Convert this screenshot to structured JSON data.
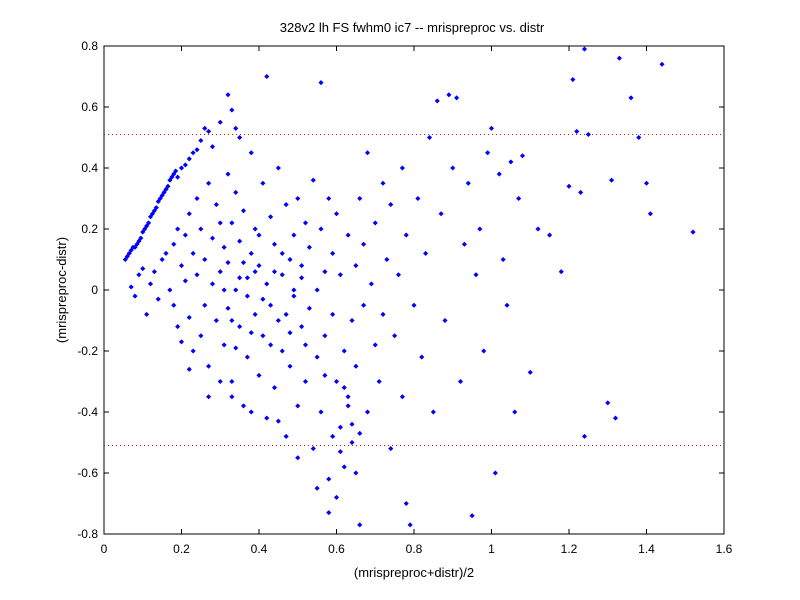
{
  "chart_data": {
    "type": "scatter",
    "title": "328v2 lh FS fwhm0 ic7 -- mrispreproc vs. distr",
    "xlabel": "(mrispreproc+distr)/2",
    "ylabel": "(mrispreproc-distr)",
    "xlim": [
      0,
      1.6
    ],
    "ylim": [
      -0.8,
      0.8
    ],
    "xticks": [
      0,
      0.2,
      0.4,
      0.6,
      0.8,
      1,
      1.2,
      1.4,
      1.6
    ],
    "xtick_labels": [
      "0",
      "0.2",
      "0.4",
      "0.6",
      "0.8",
      "1",
      "1.2",
      "1.4",
      "1.6"
    ],
    "yticks": [
      -0.8,
      -0.6,
      -0.4,
      -0.2,
      0,
      0.2,
      0.4,
      0.6,
      0.8
    ],
    "ytick_labels": [
      "-0.8",
      "-0.6",
      "-0.4",
      "-0.2",
      "0",
      "0.2",
      "0.4",
      "0.6",
      "0.8"
    ],
    "grid": false,
    "marker_color": "#0000ff",
    "reference_line_color": "#ff0000",
    "reference_lines_y": [
      0.51,
      -0.51
    ],
    "points": [
      [
        0.055,
        0.1
      ],
      [
        0.06,
        0.11
      ],
      [
        0.065,
        0.12
      ],
      [
        0.07,
        0.13
      ],
      [
        0.075,
        0.14
      ],
      [
        0.08,
        0.14
      ],
      [
        0.085,
        0.15
      ],
      [
        0.09,
        0.16
      ],
      [
        0.095,
        0.17
      ],
      [
        0.1,
        0.19
      ],
      [
        0.105,
        0.2
      ],
      [
        0.11,
        0.21
      ],
      [
        0.115,
        0.22
      ],
      [
        0.12,
        0.24
      ],
      [
        0.125,
        0.25
      ],
      [
        0.13,
        0.26
      ],
      [
        0.135,
        0.27
      ],
      [
        0.14,
        0.29
      ],
      [
        0.145,
        0.3
      ],
      [
        0.15,
        0.31
      ],
      [
        0.155,
        0.32
      ],
      [
        0.16,
        0.33
      ],
      [
        0.165,
        0.34
      ],
      [
        0.17,
        0.36
      ],
      [
        0.175,
        0.37
      ],
      [
        0.18,
        0.38
      ],
      [
        0.185,
        0.39
      ],
      [
        0.19,
        0.37
      ],
      [
        0.2,
        0.4
      ],
      [
        0.21,
        0.41
      ],
      [
        0.22,
        0.43
      ],
      [
        0.23,
        0.45
      ],
      [
        0.24,
        0.46
      ],
      [
        0.25,
        0.49
      ],
      [
        0.26,
        0.53
      ],
      [
        0.27,
        0.52
      ],
      [
        0.28,
        0.47
      ],
      [
        0.3,
        0.55
      ],
      [
        0.32,
        0.64
      ],
      [
        0.33,
        0.59
      ],
      [
        0.34,
        0.53
      ],
      [
        0.35,
        0.5
      ],
      [
        0.42,
        0.7
      ],
      [
        0.56,
        0.68
      ],
      [
        0.07,
        0.01
      ],
      [
        0.08,
        -0.02
      ],
      [
        0.09,
        0.05
      ],
      [
        0.1,
        0.07
      ],
      [
        0.11,
        -0.08
      ],
      [
        0.12,
        0.02
      ],
      [
        0.13,
        0.06
      ],
      [
        0.14,
        -0.03
      ],
      [
        0.15,
        0.1
      ],
      [
        0.16,
        0.12
      ],
      [
        0.17,
        0.0
      ],
      [
        0.18,
        -0.05
      ],
      [
        0.18,
        0.15
      ],
      [
        0.19,
        -0.12
      ],
      [
        0.19,
        0.2
      ],
      [
        0.2,
        0.08
      ],
      [
        0.2,
        -0.17
      ],
      [
        0.21,
        0.03
      ],
      [
        0.21,
        0.18
      ],
      [
        0.22,
        -0.09
      ],
      [
        0.22,
        0.25
      ],
      [
        0.23,
        0.12
      ],
      [
        0.23,
        -0.2
      ],
      [
        0.24,
        0.05
      ],
      [
        0.24,
        0.3
      ],
      [
        0.25,
        -0.15
      ],
      [
        0.25,
        0.2
      ],
      [
        0.26,
        -0.05
      ],
      [
        0.26,
        0.1
      ],
      [
        0.27,
        0.35
      ],
      [
        0.27,
        -0.25
      ],
      [
        0.28,
        0.02
      ],
      [
        0.28,
        0.17
      ],
      [
        0.29,
        -0.1
      ],
      [
        0.29,
        0.28
      ],
      [
        0.3,
        0.06
      ],
      [
        0.3,
        -0.3
      ],
      [
        0.31,
        0.14
      ],
      [
        0.31,
        -0.18
      ],
      [
        0.32,
        0.38
      ],
      [
        0.32,
        -0.06
      ],
      [
        0.33,
        0.22
      ],
      [
        0.33,
        -0.35
      ],
      [
        0.34,
        0.0
      ],
      [
        0.34,
        0.32
      ],
      [
        0.35,
        -0.12
      ],
      [
        0.35,
        0.16
      ],
      [
        0.36,
        -0.38
      ],
      [
        0.36,
        0.26
      ],
      [
        0.37,
        0.04
      ],
      [
        0.37,
        -0.22
      ],
      [
        0.38,
        0.12
      ],
      [
        0.38,
        0.45
      ],
      [
        0.39,
        -0.08
      ],
      [
        0.39,
        0.2
      ],
      [
        0.4,
        -0.28
      ],
      [
        0.4,
        0.08
      ],
      [
        0.41,
        0.35
      ],
      [
        0.41,
        -0.15
      ],
      [
        0.42,
        0.02
      ],
      [
        0.42,
        -0.42
      ],
      [
        0.43,
        0.24
      ],
      [
        0.43,
        -0.05
      ],
      [
        0.44,
        0.15
      ],
      [
        0.44,
        -0.32
      ],
      [
        0.45,
        0.4
      ],
      [
        0.45,
        -0.1
      ],
      [
        0.46,
        0.05
      ],
      [
        0.46,
        -0.2
      ],
      [
        0.47,
        0.28
      ],
      [
        0.47,
        -0.48
      ],
      [
        0.48,
        0.1
      ],
      [
        0.48,
        -0.25
      ],
      [
        0.49,
        0.18
      ],
      [
        0.49,
        -0.02
      ],
      [
        0.5,
        -0.38
      ],
      [
        0.5,
        0.3
      ],
      [
        0.51,
        -0.12
      ],
      [
        0.51,
        0.08
      ],
      [
        0.52,
        -0.3
      ],
      [
        0.52,
        0.22
      ],
      [
        0.53,
        -0.06
      ],
      [
        0.53,
        0.14
      ],
      [
        0.54,
        -0.52
      ],
      [
        0.54,
        0.36
      ],
      [
        0.55,
        0.0
      ],
      [
        0.55,
        -0.22
      ],
      [
        0.56,
        0.2
      ],
      [
        0.56,
        -0.4
      ],
      [
        0.57,
        0.06
      ],
      [
        0.57,
        -0.15
      ],
      [
        0.58,
        0.3
      ],
      [
        0.58,
        -0.62
      ],
      [
        0.59,
        -0.08
      ],
      [
        0.59,
        0.12
      ],
      [
        0.6,
        -0.3
      ],
      [
        0.6,
        0.25
      ],
      [
        0.61,
        -0.45
      ],
      [
        0.61,
        0.05
      ],
      [
        0.62,
        -0.2
      ],
      [
        0.62,
        -0.58
      ],
      [
        0.63,
        0.18
      ],
      [
        0.63,
        -0.35
      ],
      [
        0.64,
        -0.1
      ],
      [
        0.64,
        -0.5
      ],
      [
        0.65,
        0.08
      ],
      [
        0.65,
        -0.25
      ],
      [
        0.66,
        0.3
      ],
      [
        0.66,
        -0.77
      ],
      [
        0.67,
        -0.05
      ],
      [
        0.67,
        0.15
      ],
      [
        0.68,
        -0.4
      ],
      [
        0.68,
        0.45
      ],
      [
        0.69,
        0.02
      ],
      [
        0.7,
        -0.18
      ],
      [
        0.7,
        0.22
      ],
      [
        0.71,
        -0.3
      ],
      [
        0.72,
        0.35
      ],
      [
        0.72,
        -0.08
      ],
      [
        0.73,
        0.1
      ],
      [
        0.74,
        -0.52
      ],
      [
        0.74,
        0.28
      ],
      [
        0.75,
        -0.15
      ],
      [
        0.76,
        0.05
      ],
      [
        0.77,
        0.4
      ],
      [
        0.77,
        -0.35
      ],
      [
        0.78,
        -0.7
      ],
      [
        0.78,
        0.18
      ],
      [
        0.79,
        -0.77
      ],
      [
        0.8,
        -0.05
      ],
      [
        0.81,
        0.3
      ],
      [
        0.82,
        -0.22
      ],
      [
        0.83,
        0.12
      ],
      [
        0.84,
        0.5
      ],
      [
        0.85,
        -0.4
      ],
      [
        0.86,
        0.62
      ],
      [
        0.87,
        0.25
      ],
      [
        0.88,
        -0.1
      ],
      [
        0.89,
        0.64
      ],
      [
        0.9,
        0.4
      ],
      [
        0.91,
        0.63
      ],
      [
        0.92,
        -0.3
      ],
      [
        0.93,
        0.15
      ],
      [
        0.94,
        0.35
      ],
      [
        0.95,
        -0.74
      ],
      [
        0.96,
        0.05
      ],
      [
        0.97,
        0.2
      ],
      [
        0.98,
        -0.2
      ],
      [
        0.99,
        0.45
      ],
      [
        1.0,
        0.53
      ],
      [
        1.01,
        -0.6
      ],
      [
        1.02,
        0.38
      ],
      [
        1.03,
        0.1
      ],
      [
        1.04,
        -0.05
      ],
      [
        1.05,
        0.42
      ],
      [
        1.06,
        -0.4
      ],
      [
        1.07,
        0.3
      ],
      [
        1.08,
        0.44
      ],
      [
        1.1,
        -0.27
      ],
      [
        1.12,
        0.2
      ],
      [
        1.15,
        0.18
      ],
      [
        1.18,
        0.06
      ],
      [
        1.2,
        0.34
      ],
      [
        1.21,
        0.69
      ],
      [
        1.22,
        0.52
      ],
      [
        1.23,
        0.32
      ],
      [
        1.24,
        0.79
      ],
      [
        1.25,
        0.51
      ],
      [
        1.24,
        -0.48
      ],
      [
        1.3,
        -0.37
      ],
      [
        1.31,
        0.36
      ],
      [
        1.32,
        -0.42
      ],
      [
        1.33,
        0.76
      ],
      [
        1.36,
        0.63
      ],
      [
        1.38,
        0.5
      ],
      [
        1.4,
        0.35
      ],
      [
        1.41,
        0.25
      ],
      [
        1.44,
        0.74
      ],
      [
        1.52,
        0.19
      ],
      [
        0.58,
        -0.73
      ],
      [
        0.55,
        -0.65
      ],
      [
        0.6,
        -0.68
      ],
      [
        0.5,
        -0.55
      ],
      [
        0.45,
        -0.43
      ],
      [
        0.38,
        -0.4
      ],
      [
        0.33,
        -0.3
      ],
      [
        0.27,
        -0.35
      ],
      [
        0.22,
        -0.26
      ],
      [
        0.62,
        -0.32
      ],
      [
        0.64,
        -0.44
      ],
      [
        0.66,
        -0.47
      ],
      [
        0.61,
        -0.53
      ],
      [
        0.63,
        -0.38
      ],
      [
        0.57,
        -0.28
      ],
      [
        0.59,
        -0.48
      ],
      [
        0.65,
        -0.6
      ],
      [
        0.4,
        0.18
      ],
      [
        0.41,
        -0.03
      ],
      [
        0.43,
        -0.18
      ],
      [
        0.44,
        0.06
      ],
      [
        0.46,
        0.12
      ],
      [
        0.47,
        -0.08
      ],
      [
        0.48,
        -0.14
      ],
      [
        0.49,
        0.0
      ],
      [
        0.51,
        0.04
      ],
      [
        0.52,
        -0.18
      ],
      [
        0.35,
        0.04
      ],
      [
        0.36,
        0.09
      ],
      [
        0.37,
        -0.02
      ],
      [
        0.38,
        -0.14
      ],
      [
        0.39,
        0.06
      ],
      [
        0.31,
        0.0
      ],
      [
        0.32,
        0.09
      ],
      [
        0.33,
        -0.1
      ],
      [
        0.34,
        -0.19
      ],
      [
        0.3,
        0.22
      ]
    ]
  }
}
